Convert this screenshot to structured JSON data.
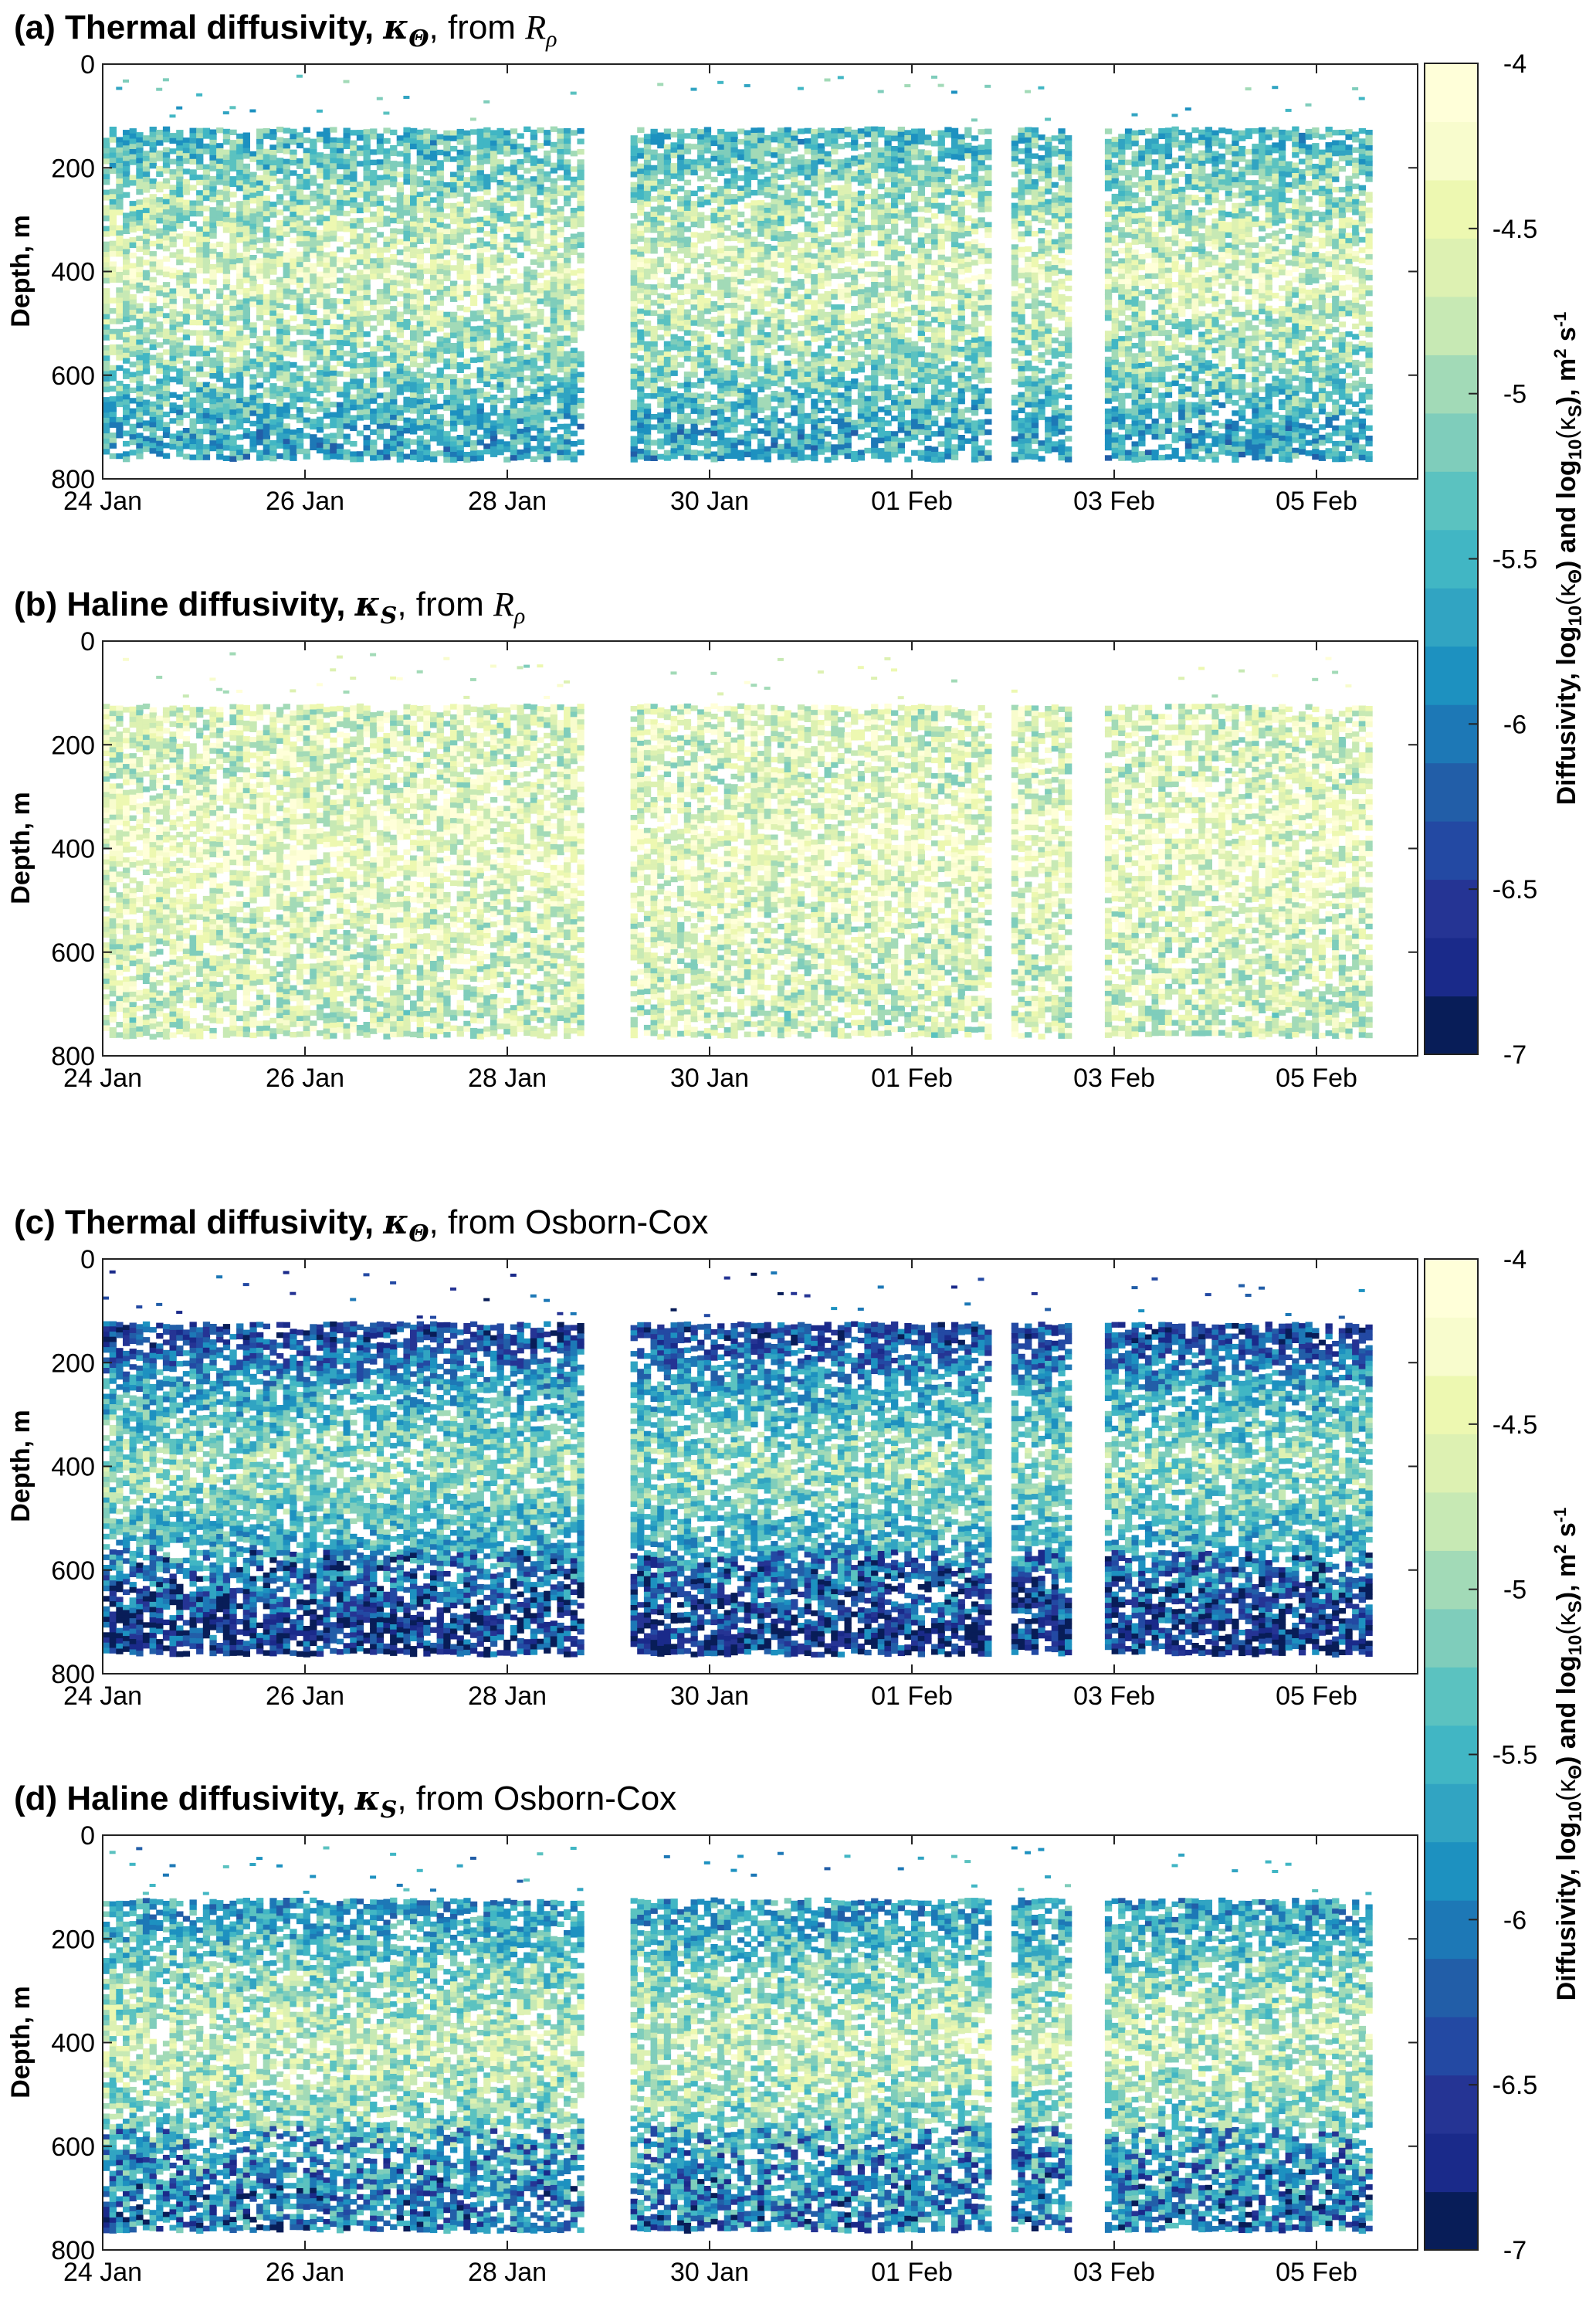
{
  "colors": {
    "colormap": [
      "#081d58",
      "#1a2a8a",
      "#253494",
      "#2349a3",
      "#225ea8",
      "#1d78b6",
      "#1d91c0",
      "#31a4c2",
      "#41b6c4",
      "#5bc2c0",
      "#7fcdbb",
      "#a2dab7",
      "#c7e9b4",
      "#ddf1b2",
      "#edf8b1",
      "#f8fccd",
      "#ffffd9"
    ],
    "background": "#ffffff",
    "axes": "#222222"
  },
  "colorbar": {
    "ticks": [
      "-4",
      "-4.5",
      "-5",
      "-5.5",
      "-6",
      "-6.5",
      "-7"
    ],
    "label_prefix": "Diffusivity, log",
    "label_sub": "10",
    "label_kth": "(κ",
    "label_kth_sub": "Θ",
    "label_and": ")   and   log",
    "label_sub2": "10",
    "label_ks": "(κ",
    "label_ks_sub": "S",
    "label_units": "), m",
    "label_sup2": "2",
    "label_s": " s",
    "label_supm1": "-1"
  },
  "axes_common": {
    "ylabel": "Depth, m",
    "yticks": [
      "0",
      "200",
      "400",
      "600",
      "800"
    ],
    "xticks": [
      "24 Jan",
      "26 Jan",
      "28 Jan",
      "30 Jan",
      "01 Feb",
      "03 Feb",
      "05 Feb"
    ]
  },
  "panels": [
    {
      "prefix": "(a) Thermal diffusivity, ",
      "sym": "κ",
      "sub": "Θ",
      "mid": ", from ",
      "tail": "R",
      "tail_sub": "ρ"
    },
    {
      "prefix": "(b) Haline diffusivity, ",
      "sym": "κ",
      "sub": "S",
      "mid": ", from ",
      "tail": "R",
      "tail_sub": "ρ"
    },
    {
      "prefix": "(c) Thermal diffusivity, ",
      "sym": "κ",
      "sub": "Θ",
      "mid": ", from Osborn-Cox",
      "tail": "",
      "tail_sub": ""
    },
    {
      "prefix": "(d) Haline diffusivity, ",
      "sym": "κ",
      "sub": "S",
      "mid": ", from Osborn-Cox",
      "tail": "",
      "tail_sub": ""
    }
  ],
  "chart_data": [
    {
      "type": "heatmap",
      "title": "(a) Thermal diffusivity, κΘ, from Rρ",
      "xlabel": "",
      "ylabel": "Depth, m",
      "x_range": [
        "24 Jan",
        "06 Feb"
      ],
      "x_days_shown": [
        "24 Jan",
        "26 Jan",
        "28 Jan",
        "30 Jan",
        "01 Feb",
        "03 Feb",
        "05 Feb"
      ],
      "y_range": [
        0,
        800
      ],
      "y_reversed": true,
      "color_range": [
        -7,
        -4
      ],
      "data_gaps": [
        [
          "28 Jan 19:00",
          "29 Jan 04:00"
        ],
        [
          "01 Feb 20:00",
          "01 Feb 23:00"
        ],
        [
          "02 Feb 15:00",
          "02 Feb 20:00"
        ]
      ],
      "profile": [
        {
          "depth": 150,
          "value": -5.4
        },
        {
          "depth": 250,
          "value": -5.0
        },
        {
          "depth": 400,
          "value": -4.6
        },
        {
          "depth": 550,
          "value": -5.0
        },
        {
          "depth": 700,
          "value": -5.6
        }
      ]
    },
    {
      "type": "heatmap",
      "title": "(b) Haline diffusivity, κS, from Rρ",
      "xlabel": "",
      "ylabel": "Depth, m",
      "x_range": [
        "24 Jan",
        "06 Feb"
      ],
      "y_range": [
        0,
        800
      ],
      "y_reversed": true,
      "color_range": [
        -7,
        -4
      ],
      "profile": [
        {
          "depth": 150,
          "value": -4.6
        },
        {
          "depth": 250,
          "value": -4.6
        },
        {
          "depth": 400,
          "value": -4.4
        },
        {
          "depth": 550,
          "value": -4.6
        },
        {
          "depth": 700,
          "value": -4.7
        }
      ]
    },
    {
      "type": "heatmap",
      "title": "(c) Thermal diffusivity, κΘ, from Osborn-Cox",
      "xlabel": "",
      "ylabel": "Depth, m",
      "x_range": [
        "24 Jan",
        "06 Feb"
      ],
      "y_range": [
        0,
        800
      ],
      "y_reversed": true,
      "color_range": [
        -7,
        -4
      ],
      "profile": [
        {
          "depth": 150,
          "value": -6.4
        },
        {
          "depth": 250,
          "value": -5.6
        },
        {
          "depth": 400,
          "value": -5.0
        },
        {
          "depth": 550,
          "value": -5.6
        },
        {
          "depth": 700,
          "value": -6.3
        }
      ]
    },
    {
      "type": "heatmap",
      "title": "(d) Haline diffusivity, κS, from Osborn-Cox",
      "xlabel": "",
      "ylabel": "Depth, m",
      "x_range": [
        "24 Jan",
        "06 Feb"
      ],
      "y_range": [
        0,
        800
      ],
      "y_reversed": true,
      "color_range": [
        -7,
        -4
      ],
      "profile": [
        {
          "depth": 150,
          "value": -5.7
        },
        {
          "depth": 250,
          "value": -5.2
        },
        {
          "depth": 400,
          "value": -4.7
        },
        {
          "depth": 550,
          "value": -5.2
        },
        {
          "depth": 700,
          "value": -5.7
        }
      ]
    }
  ]
}
